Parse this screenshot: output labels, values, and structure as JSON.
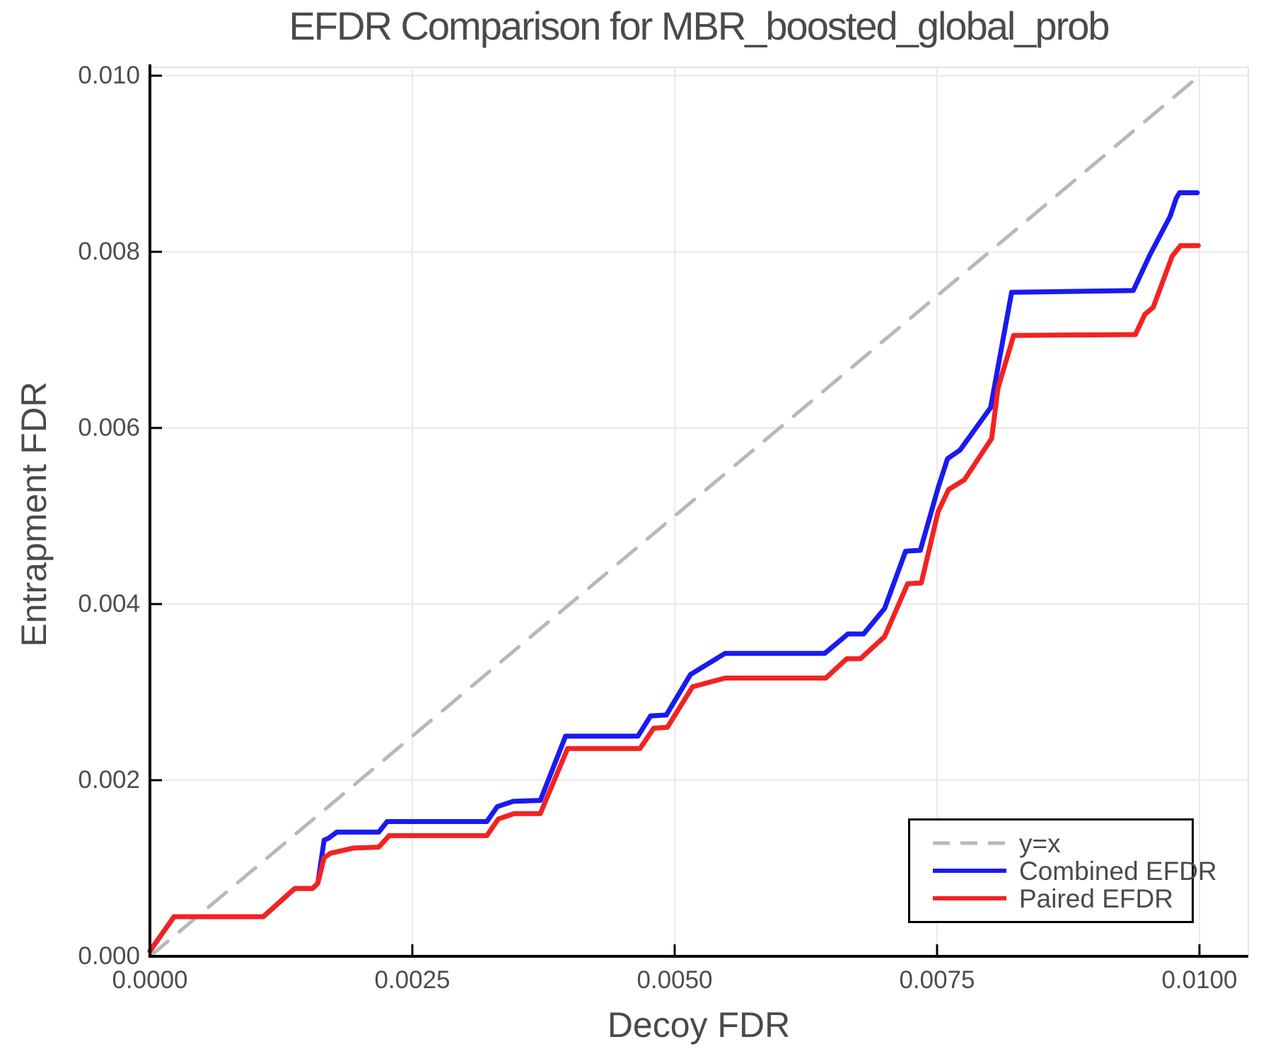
{
  "chart_data": {
    "type": "line",
    "title": "EFDR Comparison for MBR_boosted_global_prob",
    "xlabel": "Decoy FDR",
    "ylabel": "Entrapment FDR",
    "xlim": [
      0,
      0.010465
    ],
    "ylim": [
      0,
      0.010096
    ],
    "grid": true,
    "legend_position": "bottom-right",
    "colors": {
      "background": "#ffffff",
      "grid": "#e9e9e9",
      "frame": "#e3e3e3",
      "spine": "#000000",
      "text": "#4a4a4a"
    },
    "xticks": {
      "values": [
        0,
        0.0025,
        0.005,
        0.0075,
        0.01
      ],
      "labels": [
        "0.0000",
        "0.0025",
        "0.0050",
        "0.0075",
        "0.0100"
      ]
    },
    "yticks": {
      "values": [
        0,
        0.002,
        0.004,
        0.006,
        0.008,
        0.01
      ],
      "labels": [
        "0.000",
        "0.002",
        "0.004",
        "0.006",
        "0.008",
        "0.010"
      ]
    },
    "series": [
      {
        "name": "y=x",
        "color": "#b8b8b8",
        "style": "dashed",
        "points": [
          [
            0,
            0
          ],
          [
            0.01,
            0.01
          ]
        ]
      },
      {
        "name": "Combined EFDR",
        "color": "#1a1af0",
        "style": "solid",
        "points": [
          [
            0,
            6e-05
          ],
          [
            0.00023,
            0.00045
          ],
          [
            0.00108,
            0.00045
          ],
          [
            0.00138,
            0.00077
          ],
          [
            0.00155,
            0.00077
          ],
          [
            0.0016,
            0.00083
          ],
          [
            0.00166,
            0.00132
          ],
          [
            0.0017,
            0.00134
          ],
          [
            0.00178,
            0.00141
          ],
          [
            0.00218,
            0.00141
          ],
          [
            0.00226,
            0.00153
          ],
          [
            0.00321,
            0.00153
          ],
          [
            0.00331,
            0.0017
          ],
          [
            0.00346,
            0.00176
          ],
          [
            0.00372,
            0.00177
          ],
          [
            0.00396,
            0.0025
          ],
          [
            0.00465,
            0.0025
          ],
          [
            0.00477,
            0.00273
          ],
          [
            0.00492,
            0.00274
          ],
          [
            0.00515,
            0.0032
          ],
          [
            0.00548,
            0.00344
          ],
          [
            0.00643,
            0.00344
          ],
          [
            0.00665,
            0.00366
          ],
          [
            0.0068,
            0.00366
          ],
          [
            0.007,
            0.00395
          ],
          [
            0.0072,
            0.0046
          ],
          [
            0.00734,
            0.00461
          ],
          [
            0.00751,
            0.00532
          ],
          [
            0.0076,
            0.00565
          ],
          [
            0.00772,
            0.00575
          ],
          [
            0.00801,
            0.00623
          ],
          [
            0.00821,
            0.00754
          ],
          [
            0.00937,
            0.00756
          ],
          [
            0.00953,
            0.00797
          ],
          [
            0.00972,
            0.0084
          ],
          [
            0.00978,
            0.00861
          ],
          [
            0.00981,
            0.00867
          ],
          [
            0.00998,
            0.00867
          ]
        ]
      },
      {
        "name": "Paired EFDR",
        "color": "#f32222",
        "style": "solid",
        "points": [
          [
            0,
            6e-05
          ],
          [
            0.00023,
            0.00045
          ],
          [
            0.00108,
            0.00045
          ],
          [
            0.00138,
            0.00077
          ],
          [
            0.00155,
            0.00077
          ],
          [
            0.0016,
            0.00083
          ],
          [
            0.00166,
            0.00112
          ],
          [
            0.00172,
            0.00117
          ],
          [
            0.00194,
            0.00123
          ],
          [
            0.00218,
            0.00124
          ],
          [
            0.00228,
            0.00137
          ],
          [
            0.00321,
            0.00137
          ],
          [
            0.00332,
            0.00156
          ],
          [
            0.00347,
            0.00162
          ],
          [
            0.00372,
            0.00162
          ],
          [
            0.00398,
            0.00236
          ],
          [
            0.00467,
            0.00236
          ],
          [
            0.0048,
            0.00259
          ],
          [
            0.00493,
            0.0026
          ],
          [
            0.00517,
            0.00306
          ],
          [
            0.00548,
            0.00316
          ],
          [
            0.00644,
            0.00316
          ],
          [
            0.00664,
            0.00338
          ],
          [
            0.00677,
            0.00338
          ],
          [
            0.007,
            0.00363
          ],
          [
            0.00722,
            0.00423
          ],
          [
            0.00735,
            0.00424
          ],
          [
            0.00751,
            0.00505
          ],
          [
            0.00761,
            0.0053
          ],
          [
            0.00776,
            0.00541
          ],
          [
            0.00802,
            0.00588
          ],
          [
            0.00808,
            0.00645
          ],
          [
            0.00823,
            0.00705
          ],
          [
            0.00939,
            0.00706
          ],
          [
            0.00948,
            0.00729
          ],
          [
            0.00956,
            0.00737
          ],
          [
            0.00974,
            0.00795
          ],
          [
            0.00982,
            0.00807
          ],
          [
            0.00999,
            0.00807
          ]
        ]
      }
    ]
  }
}
